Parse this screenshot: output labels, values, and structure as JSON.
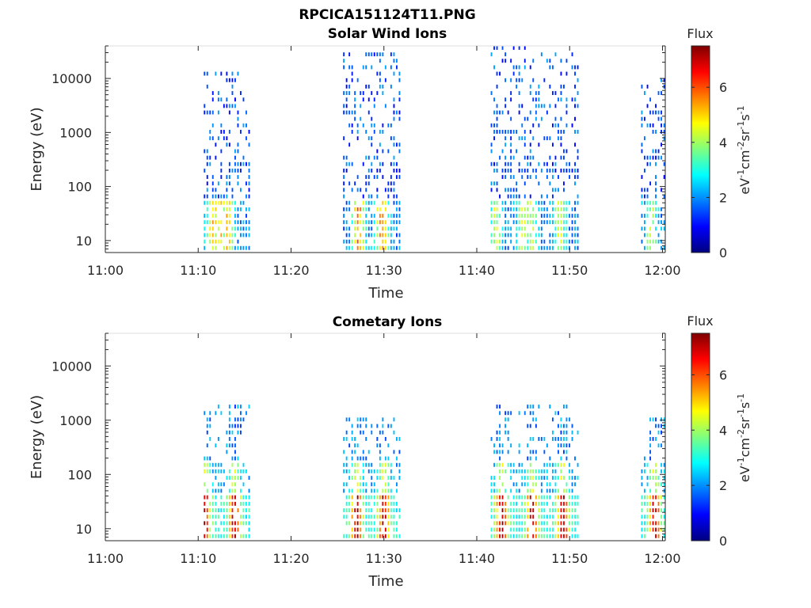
{
  "figure_title": "RPCICA151124T11.PNG",
  "colorbar": {
    "title": "Flux",
    "unit_parts": [
      {
        "text": "eV",
        "sup": false
      },
      {
        "text": "-1",
        "sup": true
      },
      {
        "text": "cm",
        "sup": false
      },
      {
        "text": "-2",
        "sup": true
      },
      {
        "text": "sr",
        "sup": false
      },
      {
        "text": "-1",
        "sup": true
      },
      {
        "text": "s",
        "sup": false
      },
      {
        "text": "-1",
        "sup": true
      }
    ],
    "ticks": [
      "0",
      "2",
      "4",
      "6"
    ],
    "range": [
      0,
      7.5
    ],
    "colormap": [
      "#00007f",
      "#0000ff",
      "#007fff",
      "#00ffff",
      "#7fff7f",
      "#ffff00",
      "#ff7f00",
      "#ff0000",
      "#7f0000"
    ]
  },
  "chart_data": [
    {
      "type": "heatmap",
      "title": "Solar Wind Ions",
      "xlabel": "Time",
      "ylabel": "Energy (eV)",
      "x_tick_labels": [
        "11:00",
        "11:10",
        "11:20",
        "11:30",
        "11:40",
        "11:50",
        "12:00"
      ],
      "x_range_minutes": [
        0,
        60.3
      ],
      "y_tick_labels": [
        "10",
        "100",
        "1000",
        "10000"
      ],
      "y_scale": "log",
      "y_range": [
        6,
        40000
      ],
      "clusters": [
        {
          "start": 10.6,
          "end": 15.5,
          "low_peak": 5.0,
          "low_peaks_at": [
            11.5,
            12.3,
            13.1
          ],
          "high_top": 14000
        },
        {
          "start": 25.6,
          "end": 31.7,
          "low_peak": 5.6,
          "low_peaks_at": [
            27.2,
            29.7
          ],
          "high_top": 30000
        },
        {
          "start": 41.5,
          "end": 51.0,
          "low_peak": 4.2,
          "low_peaks_at": [
            42.0,
            44.9,
            45.8,
            48.9
          ],
          "high_top": 38000
        },
        {
          "start": 57.7,
          "end": 60.3,
          "low_peak": 4.0,
          "low_peaks_at": [
            58.7
          ],
          "high_top": 10000
        }
      ]
    },
    {
      "type": "heatmap",
      "title": "Cometary Ions",
      "xlabel": "Time",
      "ylabel": "Energy (eV)",
      "x_tick_labels": [
        "11:00",
        "11:10",
        "11:20",
        "11:30",
        "11:40",
        "11:50",
        "12:00"
      ],
      "x_range_minutes": [
        0,
        60.3
      ],
      "y_tick_labels": [
        "10",
        "100",
        "1000",
        "10000"
      ],
      "y_scale": "log",
      "y_range": [
        6,
        40000
      ],
      "clusters": [
        {
          "start": 10.6,
          "end": 15.5,
          "peak": 7.0,
          "peaks_at": [
            7.5,
            10.6,
            13.8
          ],
          "top": 1800
        },
        {
          "start": 25.6,
          "end": 31.7,
          "peak": 7.0,
          "peaks_at": [
            27.0,
            29.9
          ],
          "top": 1100
        },
        {
          "start": 41.5,
          "end": 51.0,
          "peak": 7.2,
          "peaks_at": [
            42.6,
            45.9,
            49.2
          ],
          "top": 1800
        },
        {
          "start": 57.7,
          "end": 60.3,
          "peak": 7.0,
          "peaks_at": [
            59.1
          ],
          "top": 1000
        }
      ]
    }
  ]
}
